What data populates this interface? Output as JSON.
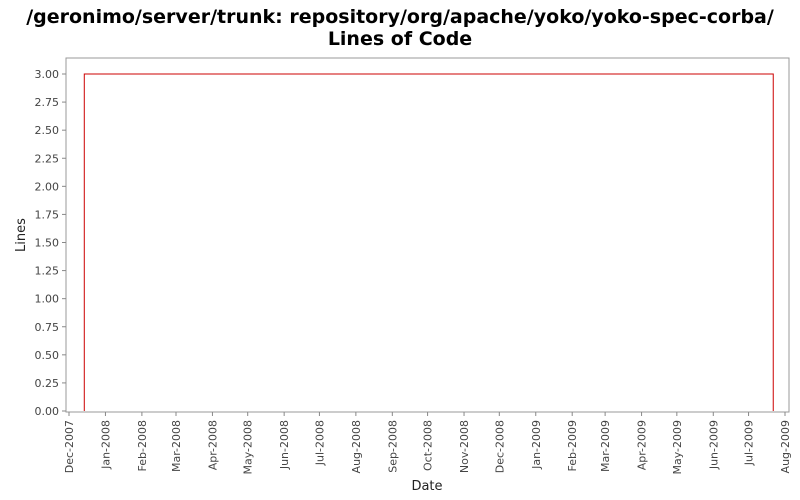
{
  "chart_data": {
    "type": "line",
    "title": "/geronimo/server/trunk: repository/org/apache/yoko/yoko-spec-corba/",
    "subtitle": "Lines of Code",
    "xlabel": "Date",
    "ylabel": "Lines",
    "x_ticks": [
      "Dec-2007",
      "Jan-2008",
      "Feb-2008",
      "Mar-2008",
      "Apr-2008",
      "May-2008",
      "Jun-2008",
      "Jul-2008",
      "Aug-2008",
      "Sep-2008",
      "Oct-2008",
      "Nov-2008",
      "Dec-2008",
      "Jan-2009",
      "Feb-2009",
      "Mar-2009",
      "Apr-2009",
      "May-2009",
      "Jun-2009",
      "Jul-2009",
      "Aug-2009"
    ],
    "y_ticks": [
      "0.00",
      "0.25",
      "0.50",
      "0.75",
      "1.00",
      "1.25",
      "1.50",
      "1.75",
      "2.00",
      "2.25",
      "2.50",
      "2.75",
      "3.00"
    ],
    "ylim": [
      0,
      3
    ],
    "xlim": [
      "2007-12-01",
      "2009-08-01"
    ],
    "grid": false,
    "series": [
      {
        "color": "#cc0000",
        "x": [
          "2007-12-14",
          "2007-12-14",
          "2009-07-22",
          "2009-07-22"
        ],
        "values": [
          0,
          3,
          3,
          0
        ]
      }
    ]
  }
}
